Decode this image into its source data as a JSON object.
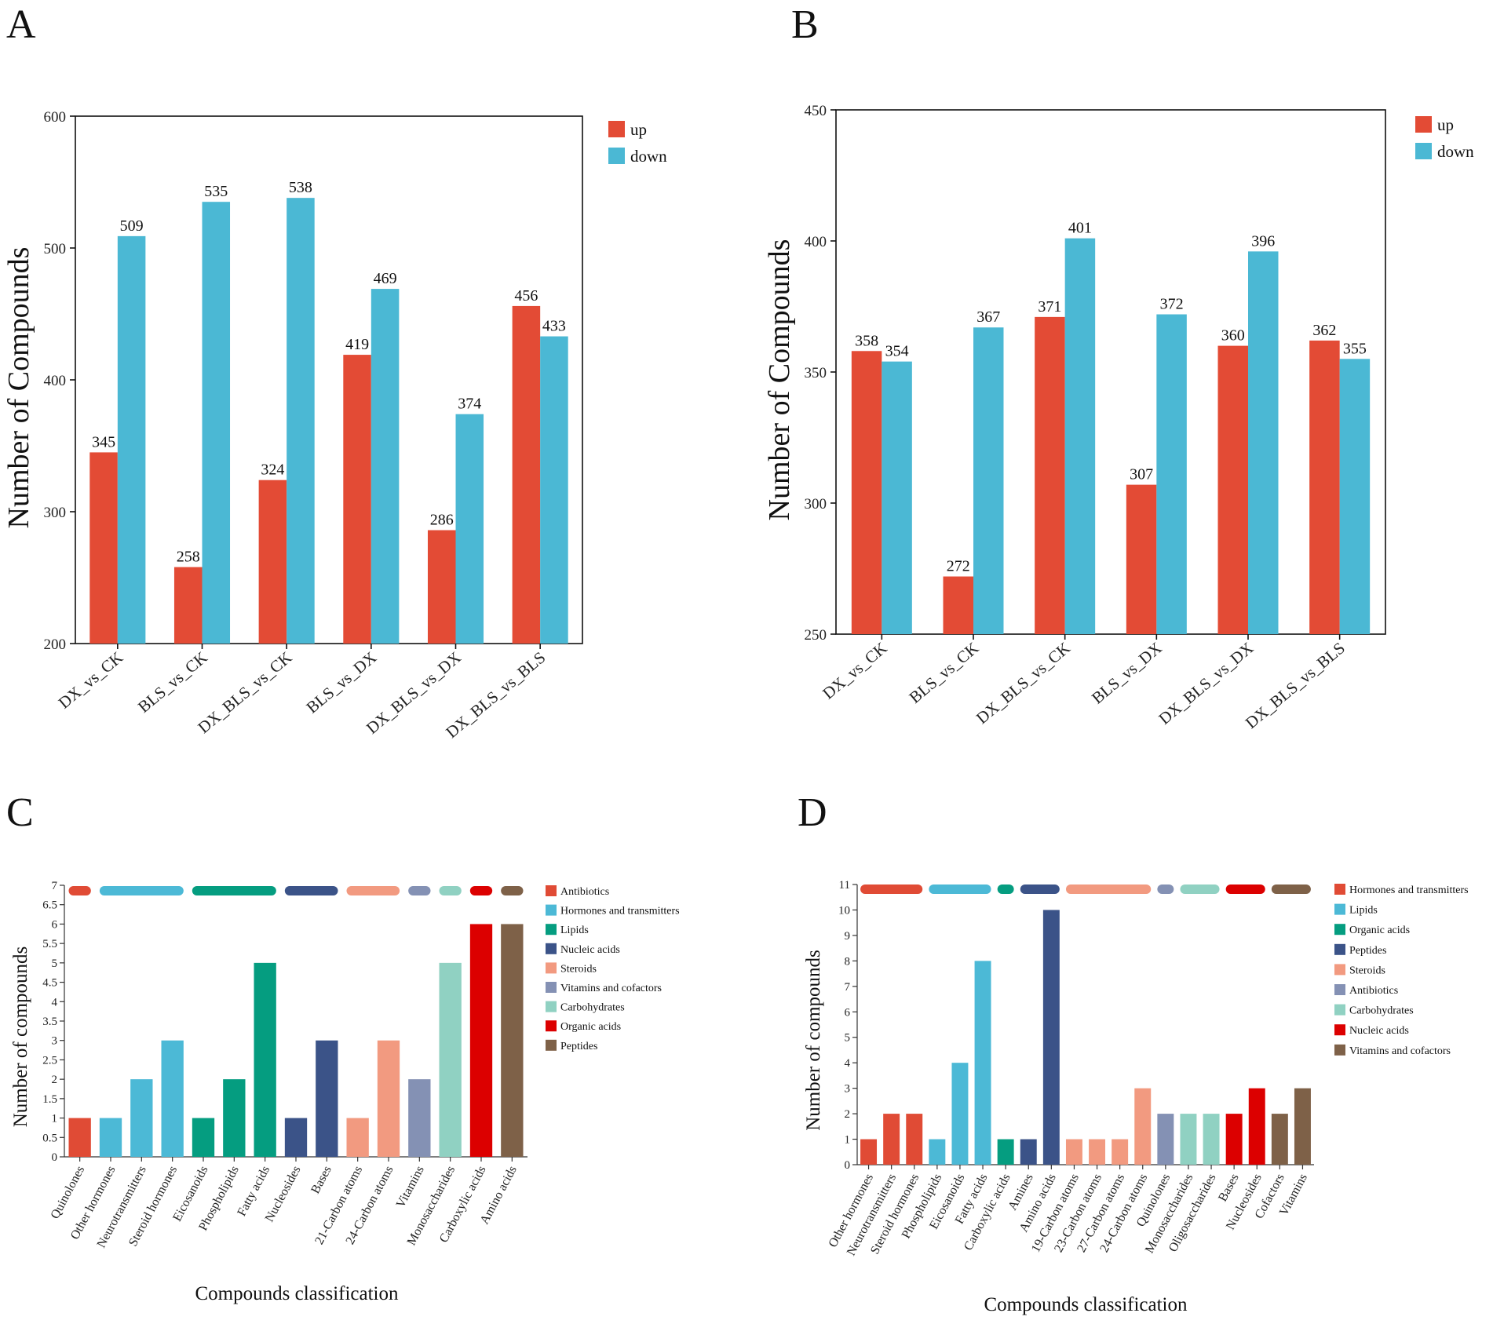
{
  "panels": {
    "A": {
      "letter": "A"
    },
    "B": {
      "letter": "B"
    },
    "C": {
      "letter": "C"
    },
    "D": {
      "letter": "D"
    }
  },
  "colors": {
    "up": "#e34b35",
    "down": "#4bb8d4"
  },
  "chart_data": [
    {
      "id": "A",
      "type": "bar",
      "title": "",
      "xlabel": "",
      "ylabel": "Number of Compounds",
      "ylim": [
        200,
        600
      ],
      "yticks": [
        200,
        300,
        400,
        500,
        600
      ],
      "categories": [
        "DX_vs_CK",
        "BLS_vs_CK",
        "DX_BLS_vs_CK",
        "BLS_vs_DX",
        "DX_BLS_vs_DX",
        "DX_BLS_vs_BLS"
      ],
      "series": [
        {
          "name": "up",
          "color": "#e34b35",
          "values": [
            345,
            258,
            324,
            419,
            286,
            456
          ]
        },
        {
          "name": "down",
          "color": "#4bb8d4",
          "values": [
            509,
            535,
            538,
            469,
            374,
            433
          ]
        }
      ],
      "legend_position": "top-right"
    },
    {
      "id": "B",
      "type": "bar",
      "title": "",
      "xlabel": "",
      "ylabel": "Number of Compounds",
      "ylim": [
        250,
        450
      ],
      "yticks": [
        250,
        300,
        350,
        400,
        450
      ],
      "categories": [
        "DX_vs_CK",
        "BLS_vs_CK",
        "DX_BLS_vs_CK",
        "BLS_vs_DX",
        "DX_BLS_vs_DX",
        "DX_BLS_vs_BLS"
      ],
      "series": [
        {
          "name": "up",
          "color": "#e34b35",
          "values": [
            358,
            272,
            371,
            307,
            360,
            362
          ]
        },
        {
          "name": "down",
          "color": "#4bb8d4",
          "values": [
            354,
            367,
            401,
            372,
            396,
            355
          ]
        }
      ],
      "legend_position": "top-right"
    },
    {
      "id": "C",
      "type": "bar",
      "title": "",
      "xlabel": "Compounds classification",
      "ylabel": "Number of compounds",
      "ylim": [
        0,
        7
      ],
      "yticks": [
        "0",
        "0.5",
        "1",
        "1.5",
        "2",
        "2.5",
        "3",
        "3.5",
        "4",
        "4.5",
        "5",
        "5.5",
        "6",
        "6.5",
        "7"
      ],
      "categories": [
        "Quinolones",
        "Other hormones",
        "Neurotransmitters",
        "Steroid hormones",
        "Eicosanoids",
        "Phospholipids",
        "Fatty acids",
        "Nucleosides",
        "Bases",
        "21-Carbon atoms",
        "24-Carbon atoms",
        "Vitamins",
        "Monosaccharides",
        "Carboxylic acids",
        "Amino acids"
      ],
      "values": [
        1,
        1,
        2,
        3,
        1,
        2,
        5,
        1,
        3,
        1,
        3,
        2,
        5,
        6,
        6
      ],
      "bar_groups": [
        "Antibiotics",
        "Hormones and transmitters",
        "Hormones and transmitters",
        "Hormones and transmitters",
        "Lipids",
        "Lipids",
        "Lipids",
        "Nucleic acids",
        "Nucleic acids",
        "Steroids",
        "Steroids",
        "Vitamins and cofactors",
        "Carbohydrates",
        "Organic acids",
        "Peptides"
      ],
      "legend": [
        {
          "name": "Antibiotics",
          "color": "#e04b35"
        },
        {
          "name": "Hormones and transmitters",
          "color": "#4cb9d6"
        },
        {
          "name": "Lipids",
          "color": "#059d80"
        },
        {
          "name": "Nucleic acids",
          "color": "#3b5388"
        },
        {
          "name": "Steroids",
          "color": "#f29a80"
        },
        {
          "name": "Vitamins and cofactors",
          "color": "#8491b4"
        },
        {
          "name": "Carbohydrates",
          "color": "#90d1c2"
        },
        {
          "name": "Organic acids",
          "color": "#dc0000"
        },
        {
          "name": "Peptides",
          "color": "#7e6148"
        }
      ],
      "legend_position": "top-right"
    },
    {
      "id": "D",
      "type": "bar",
      "title": "",
      "xlabel": "Compounds classification",
      "ylabel": "Number of compounds",
      "ylim": [
        0,
        11
      ],
      "yticks": [
        "0",
        "1",
        "2",
        "3",
        "4",
        "5",
        "6",
        "7",
        "8",
        "9",
        "10",
        "11"
      ],
      "categories": [
        "Other hormones",
        "Neurotransmitters",
        "Steroid hormones",
        "Phospholipids",
        "Eicosanoids",
        "Fatty acids",
        "Carboxylic acids",
        "Amines",
        "Amino acids",
        "19-Carbon atoms",
        "23-Carbon atoms",
        "27-Carbon atoms",
        "24-Carbon atoms",
        "Quinolones",
        "Monosaccharides",
        "Oligosaccharides",
        "Bases",
        "Nucleosides",
        "Cofactors",
        "Vitamins"
      ],
      "values": [
        1,
        2,
        2,
        1,
        4,
        8,
        1,
        1,
        10,
        1,
        1,
        1,
        3,
        2,
        2,
        2,
        2,
        3,
        2,
        3
      ],
      "bar_groups": [
        "Hormones and transmitters",
        "Hormones and transmitters",
        "Hormones and transmitters",
        "Lipids",
        "Lipids",
        "Lipids",
        "Organic acids",
        "Peptides",
        "Peptides",
        "Steroids",
        "Steroids",
        "Steroids",
        "Steroids",
        "Antibiotics",
        "Carbohydrates",
        "Carbohydrates",
        "Nucleic acids",
        "Nucleic acids",
        "Vitamins and cofactors",
        "Vitamins and cofactors"
      ],
      "legend": [
        {
          "name": "Hormones and transmitters",
          "color": "#e04b35"
        },
        {
          "name": "Lipids",
          "color": "#4cb9d6"
        },
        {
          "name": "Organic acids",
          "color": "#059d80"
        },
        {
          "name": "Peptides",
          "color": "#3b5388"
        },
        {
          "name": "Steroids",
          "color": "#f29a80"
        },
        {
          "name": "Antibiotics",
          "color": "#8491b4"
        },
        {
          "name": "Carbohydrates",
          "color": "#90d1c2"
        },
        {
          "name": "Nucleic acids",
          "color": "#dc0000"
        },
        {
          "name": "Vitamins and cofactors",
          "color": "#7e6148"
        }
      ],
      "legend_position": "top-right"
    }
  ]
}
